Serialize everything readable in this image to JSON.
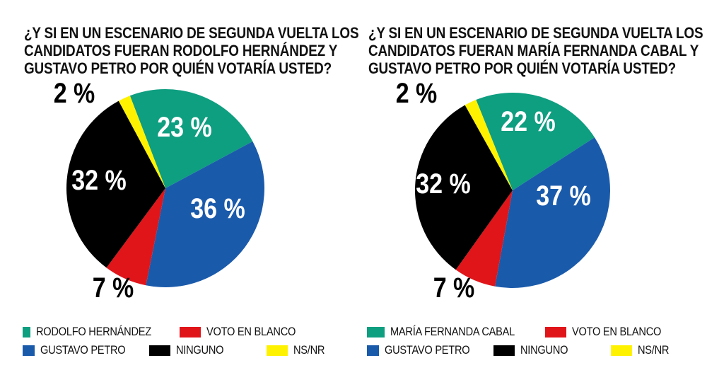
{
  "colors": {
    "candidate": "#0e9e80",
    "petro": "#1a5aab",
    "blanco": "#e0151a",
    "ninguno": "#000000",
    "nsnr": "#fff200"
  },
  "chart_data": [
    {
      "type": "pie",
      "title_lines": [
        "¿Y SI EN UN ESCENARIO DE SEGUNDA VUELTA LOS",
        "CANDIDATOS FUERAN RODOLFO HERNÁNDEZ Y",
        "GUSTAVO PETRO POR QUIÉN VOTARÍA USTED?"
      ],
      "slices": [
        {
          "name": "RODOLFO HERNÁNDEZ",
          "value": 23,
          "label": "23 %",
          "color": "#0e9e80"
        },
        {
          "name": "GUSTAVO PETRO",
          "value": 36,
          "label": "36 %",
          "color": "#1a5aab"
        },
        {
          "name": "VOTO EN BLANCO",
          "value": 7,
          "label": "7 %",
          "color": "#e0151a"
        },
        {
          "name": "NINGUNO",
          "value": 32,
          "label": "32 %",
          "color": "#000000"
        },
        {
          "name": "NS/NR",
          "value": 2,
          "label": "2 %",
          "color": "#fff200"
        }
      ],
      "legend_rows": [
        [
          0,
          2
        ],
        [
          1,
          3,
          4
        ]
      ]
    },
    {
      "type": "pie",
      "title_lines": [
        "¿Y SI EN UN ESCENARIO DE SEGUNDA VUELTA LOS",
        "CANDIDATOS FUERAN MARÍA FERNANDA CABAL Y",
        "GUSTAVO PETRO POR QUIÉN VOTARÍA USTED?"
      ],
      "slices": [
        {
          "name": "MARÍA FERNANDA CABAL",
          "value": 22,
          "label": "22 %",
          "color": "#0e9e80"
        },
        {
          "name": "GUSTAVO PETRO",
          "value": 37,
          "label": "37 %",
          "color": "#1a5aab"
        },
        {
          "name": "VOTO EN BLANCO",
          "value": 7,
          "label": "7 %",
          "color": "#e0151a"
        },
        {
          "name": "NINGUNO",
          "value": 32,
          "label": "32 %",
          "color": "#000000"
        },
        {
          "name": "NS/NR",
          "value": 2,
          "label": "2 %",
          "color": "#fff200"
        }
      ],
      "legend_rows": [
        [
          0,
          2
        ],
        [
          1,
          3,
          4
        ]
      ]
    }
  ]
}
